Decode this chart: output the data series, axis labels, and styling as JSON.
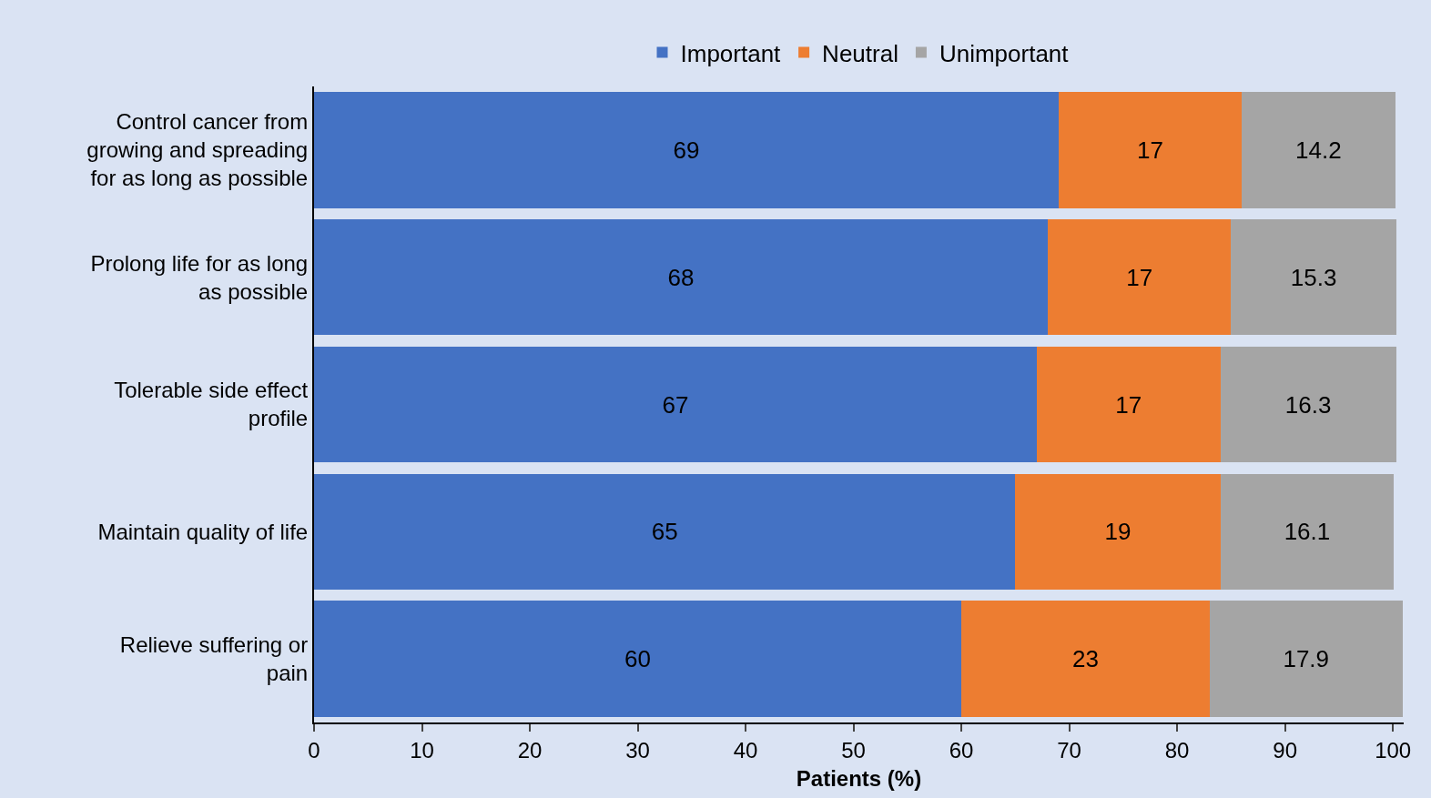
{
  "chart_data": {
    "type": "bar",
    "orientation": "horizontal",
    "stacked": true,
    "xlabel": "Patients (%)",
    "categories": [
      "Control cancer from growing and spreading for as long as possible",
      "Prolong life for as long as possible",
      "Tolerable side effect profile",
      "Maintain quality of life",
      "Relieve suffering or pain"
    ],
    "series": [
      {
        "name": "Important",
        "color": "#4472c4",
        "values": [
          69,
          68,
          67,
          65,
          60
        ]
      },
      {
        "name": "Neutral",
        "color": "#ed7d31",
        "values": [
          17,
          17,
          17,
          19,
          23
        ]
      },
      {
        "name": "Unimportant",
        "color": "#a5a5a5",
        "values": [
          14.2,
          15.3,
          16.3,
          16.1,
          17.9
        ]
      }
    ],
    "xlim": [
      0,
      101
    ],
    "xticks": [
      0,
      10,
      20,
      30,
      40,
      50,
      60,
      70,
      80,
      90,
      100
    ],
    "data_labels": true,
    "grid": false,
    "legend": "top"
  }
}
